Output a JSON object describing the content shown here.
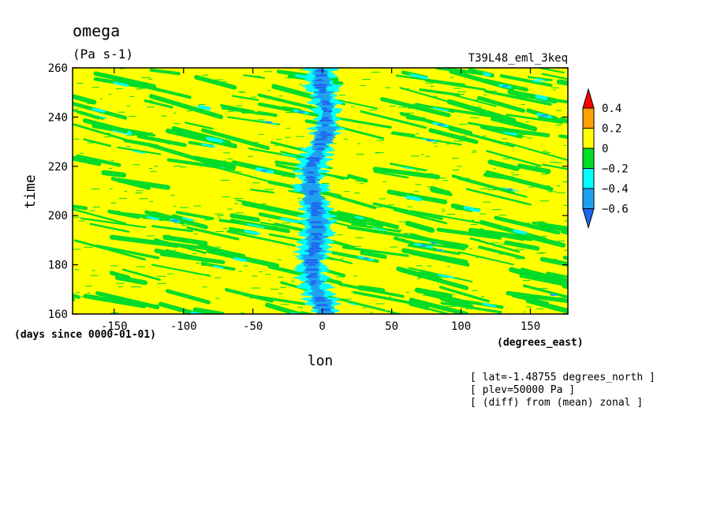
{
  "chart_data": {
    "type": "heatmap",
    "title": "omega",
    "units": "(Pa s-1)",
    "run_label": "T39L48_eml_3keq",
    "xlabel": "lon",
    "ylabel": "time",
    "x_units_label": "(degrees_east)",
    "y_units_label": "(days since 0000-01-01)",
    "xlim": [
      -180,
      177
    ],
    "ylim": [
      160,
      260
    ],
    "x_ticks": [
      -150,
      -100,
      -50,
      0,
      50,
      100,
      150
    ],
    "y_ticks": [
      160,
      180,
      200,
      220,
      240,
      260
    ],
    "colorbar": {
      "levels": [
        -0.6,
        -0.4,
        -0.2,
        0,
        0.2,
        0.4
      ],
      "level_labels": [
        "-0.6",
        "-0.4",
        "-0.2",
        "0",
        "0.2",
        "0.4"
      ],
      "bins": [
        {
          "range": "< -0.6",
          "color": "#1e64f0"
        },
        {
          "range": "-0.6 to -0.4",
          "color": "#1ea0f0"
        },
        {
          "range": "-0.4 to -0.2",
          "color": "#00ffff"
        },
        {
          "range": "-0.2 to 0",
          "color": "#00dc28"
        },
        {
          "range": "0 to 0.2",
          "color": "#ffff00"
        },
        {
          "range": "0.2 to 0.4",
          "color": "#ffa000"
        },
        {
          "range": "> 0.4",
          "color": "#ff0000"
        }
      ]
    },
    "notes": [
      "[ lat=-1.48755 degrees_north ]",
      "[ plev=50000 Pa ]",
      "[ (diff) from (mean) zonal ]"
    ]
  }
}
